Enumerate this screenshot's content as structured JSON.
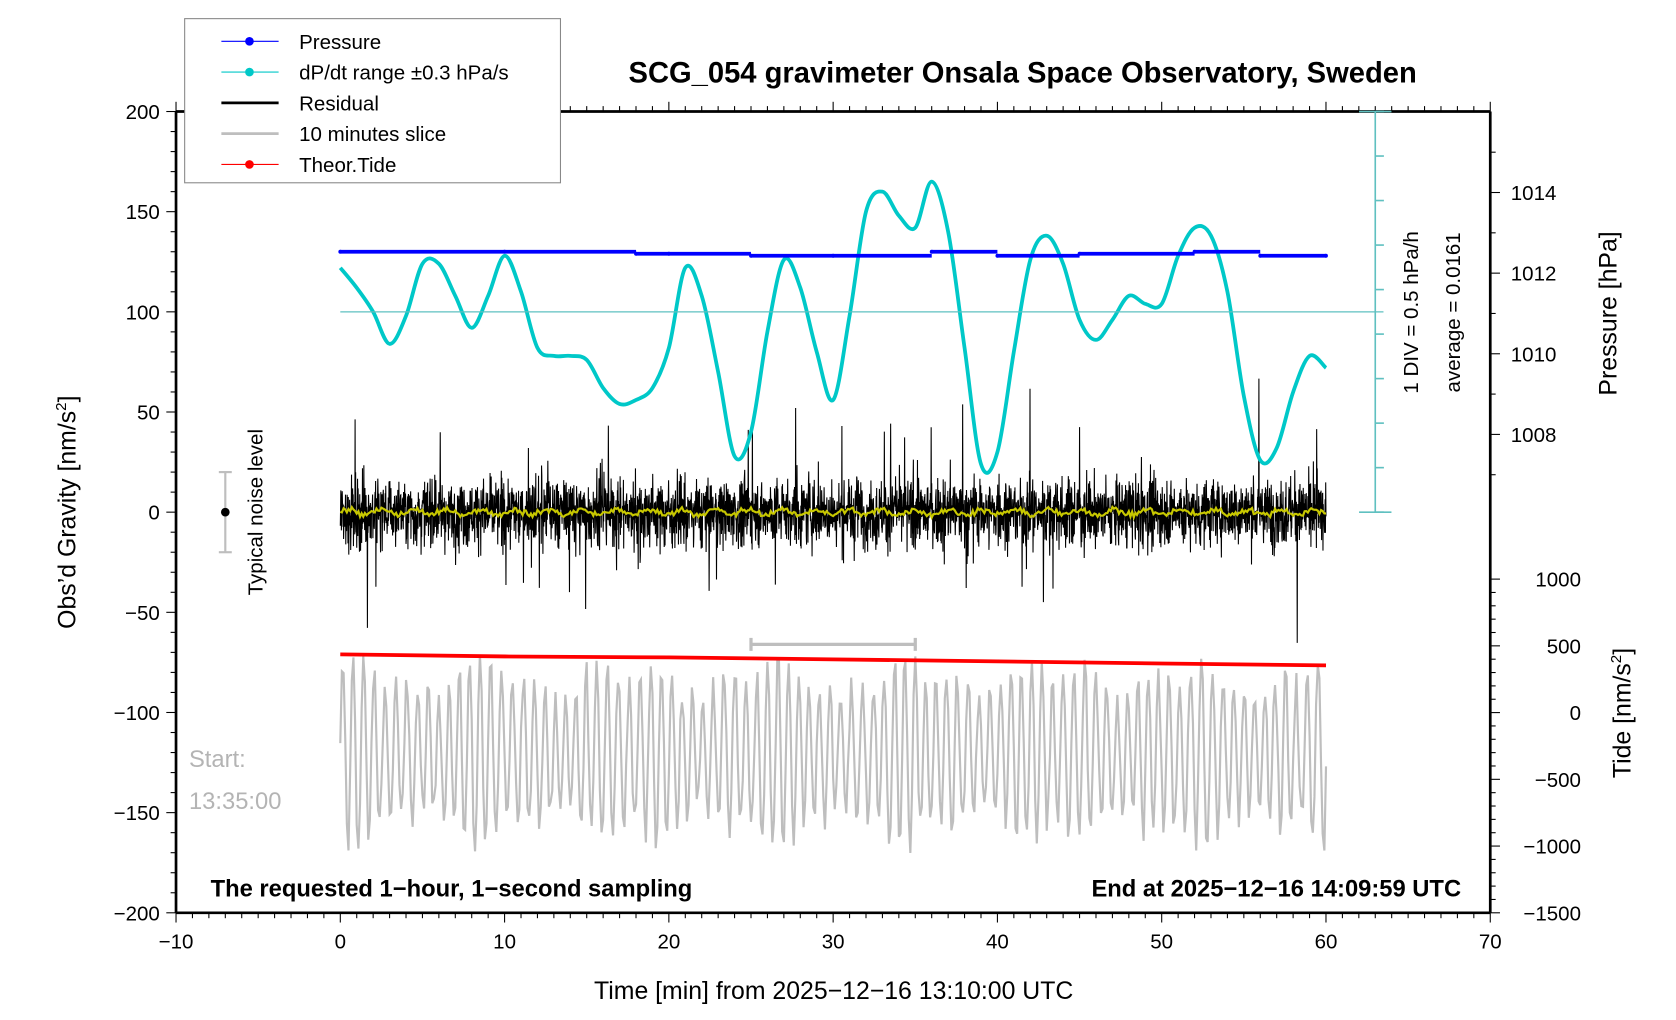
{
  "chart_data": {
    "type": "line",
    "title": "SCG_054 gravimeter Onsala Space Observatory, Sweden",
    "xlabel": "Time [min] from 2025−12−16 13:10:00 UTC",
    "ylabel_left": "Obs’d Gravity [nm/s²]",
    "ylabel_right_top": "Pressure [hPa]",
    "ylabel_right_bottom": "Tide [nm/s²]",
    "xlim": [
      -10,
      70
    ],
    "ylim": [
      -200,
      200
    ],
    "x_ticks": [
      "−10",
      "0",
      "10",
      "20",
      "30",
      "40",
      "50",
      "60",
      "70"
    ],
    "x_tick_values": [
      -10,
      0,
      10,
      20,
      30,
      40,
      50,
      60,
      70
    ],
    "y_ticks": [
      "200",
      "150",
      "100",
      "50",
      "0",
      "−50",
      "−100",
      "−150",
      "−200"
    ],
    "y_tick_values": [
      200,
      150,
      100,
      50,
      0,
      -50,
      -100,
      -150,
      -200
    ],
    "pressure_ticks": [
      "1014",
      "1012",
      "1010",
      "1008"
    ],
    "pressure_tick_values": [
      1014,
      1012,
      1010,
      1008
    ],
    "tide_ticks": [
      "1000",
      "500",
      "0",
      "−500",
      "−1000",
      "−1500"
    ],
    "tide_tick_values": [
      1000,
      500,
      0,
      -500,
      -1000,
      -1500
    ],
    "legend": [
      {
        "label": "Pressure",
        "color": "#0000ff",
        "marker": true
      },
      {
        "label": "dP/dt range ±0.3 hPa/s",
        "color": "#00c8c8",
        "marker": true
      },
      {
        "label": "Residual",
        "color": "#000000",
        "marker": false
      },
      {
        "label": "10 minutes slice",
        "color": "#bebebe",
        "marker": false
      },
      {
        "label": "Theor.Tide",
        "color": "#ff0000",
        "marker": true
      }
    ],
    "legend_position": "top-left",
    "annotations": {
      "dpdt_scale": "1 DIV = 0.5 hPa/h",
      "dpdt_average": "average = 0.0161",
      "noise_label": "Typical noise level",
      "start_label": "Start:",
      "start_time": "13:35:00",
      "bottom_left": "The requested 1−hour, 1−second sampling",
      "bottom_right": "End at 2025−12−16 14:09:59 UTC"
    },
    "noise_level": {
      "x": -7,
      "center": 0,
      "range": [
        -20,
        20
      ]
    },
    "slice_bar": {
      "x_start": 25,
      "x_end": 35,
      "y": -66
    },
    "series": [
      {
        "name": "dP/dt (plotted on gravity axis)",
        "color": "#00c8c8",
        "x": [
          0,
          1,
          2,
          3,
          4,
          5,
          6,
          7,
          8,
          9,
          10,
          11,
          12,
          13,
          14,
          15,
          16,
          17,
          18,
          19,
          20,
          21,
          22,
          23,
          24,
          25,
          26,
          27,
          28,
          29,
          30,
          31,
          32,
          33,
          34,
          35,
          36,
          37,
          38,
          39,
          40,
          41,
          42,
          43,
          44,
          45,
          46,
          47,
          48,
          49,
          50,
          51,
          52,
          53,
          54,
          55,
          56,
          57,
          58,
          59,
          60
        ],
        "y": [
          122,
          112,
          100,
          84,
          98,
          124,
          124,
          108,
          92,
          108,
          128,
          110,
          82,
          78,
          78,
          76,
          62,
          54,
          56,
          62,
          82,
          122,
          108,
          70,
          28,
          40,
          90,
          126,
          112,
          80,
          56,
          98,
          150,
          160,
          148,
          142,
          165,
          140,
          82,
          24,
          30,
          80,
          126,
          138,
          124,
          96,
          86,
          96,
          108,
          104,
          104,
          128,
          142,
          138,
          110,
          58,
          26,
          32,
          60,
          78,
          72
        ]
      },
      {
        "name": "Pressure (plotted on gravity axis)",
        "color": "#0000ff",
        "x": [
          0,
          10,
          18,
          20,
          25,
          30,
          36,
          40,
          45,
          52,
          56,
          60
        ],
        "y": [
          130,
          130,
          129,
          129,
          128,
          128,
          130,
          128,
          129,
          130,
          128,
          128
        ]
      },
      {
        "name": "Theor.Tide (plotted on gravity axis)",
        "color": "#ff0000",
        "x": [
          0,
          10,
          20,
          30,
          40,
          50,
          60
        ],
        "y": [
          -71,
          -72,
          -72.5,
          -73.5,
          -74.5,
          -75.5,
          -76.5
        ]
      },
      {
        "name": "Residual",
        "color": "#000000",
        "envelope_peak": 80,
        "description": "1-second noise, amplitude mostly ±30–60 nm/s², spikes to ~±85"
      },
      {
        "name": "Residual smoothed",
        "color": "#c8c800",
        "level": 0
      },
      {
        "name": "10 minutes slice",
        "color": "#bebebe",
        "center": -120,
        "amplitude": 50
      }
    ],
    "dpdt_reference_level": 100,
    "grid": false
  }
}
